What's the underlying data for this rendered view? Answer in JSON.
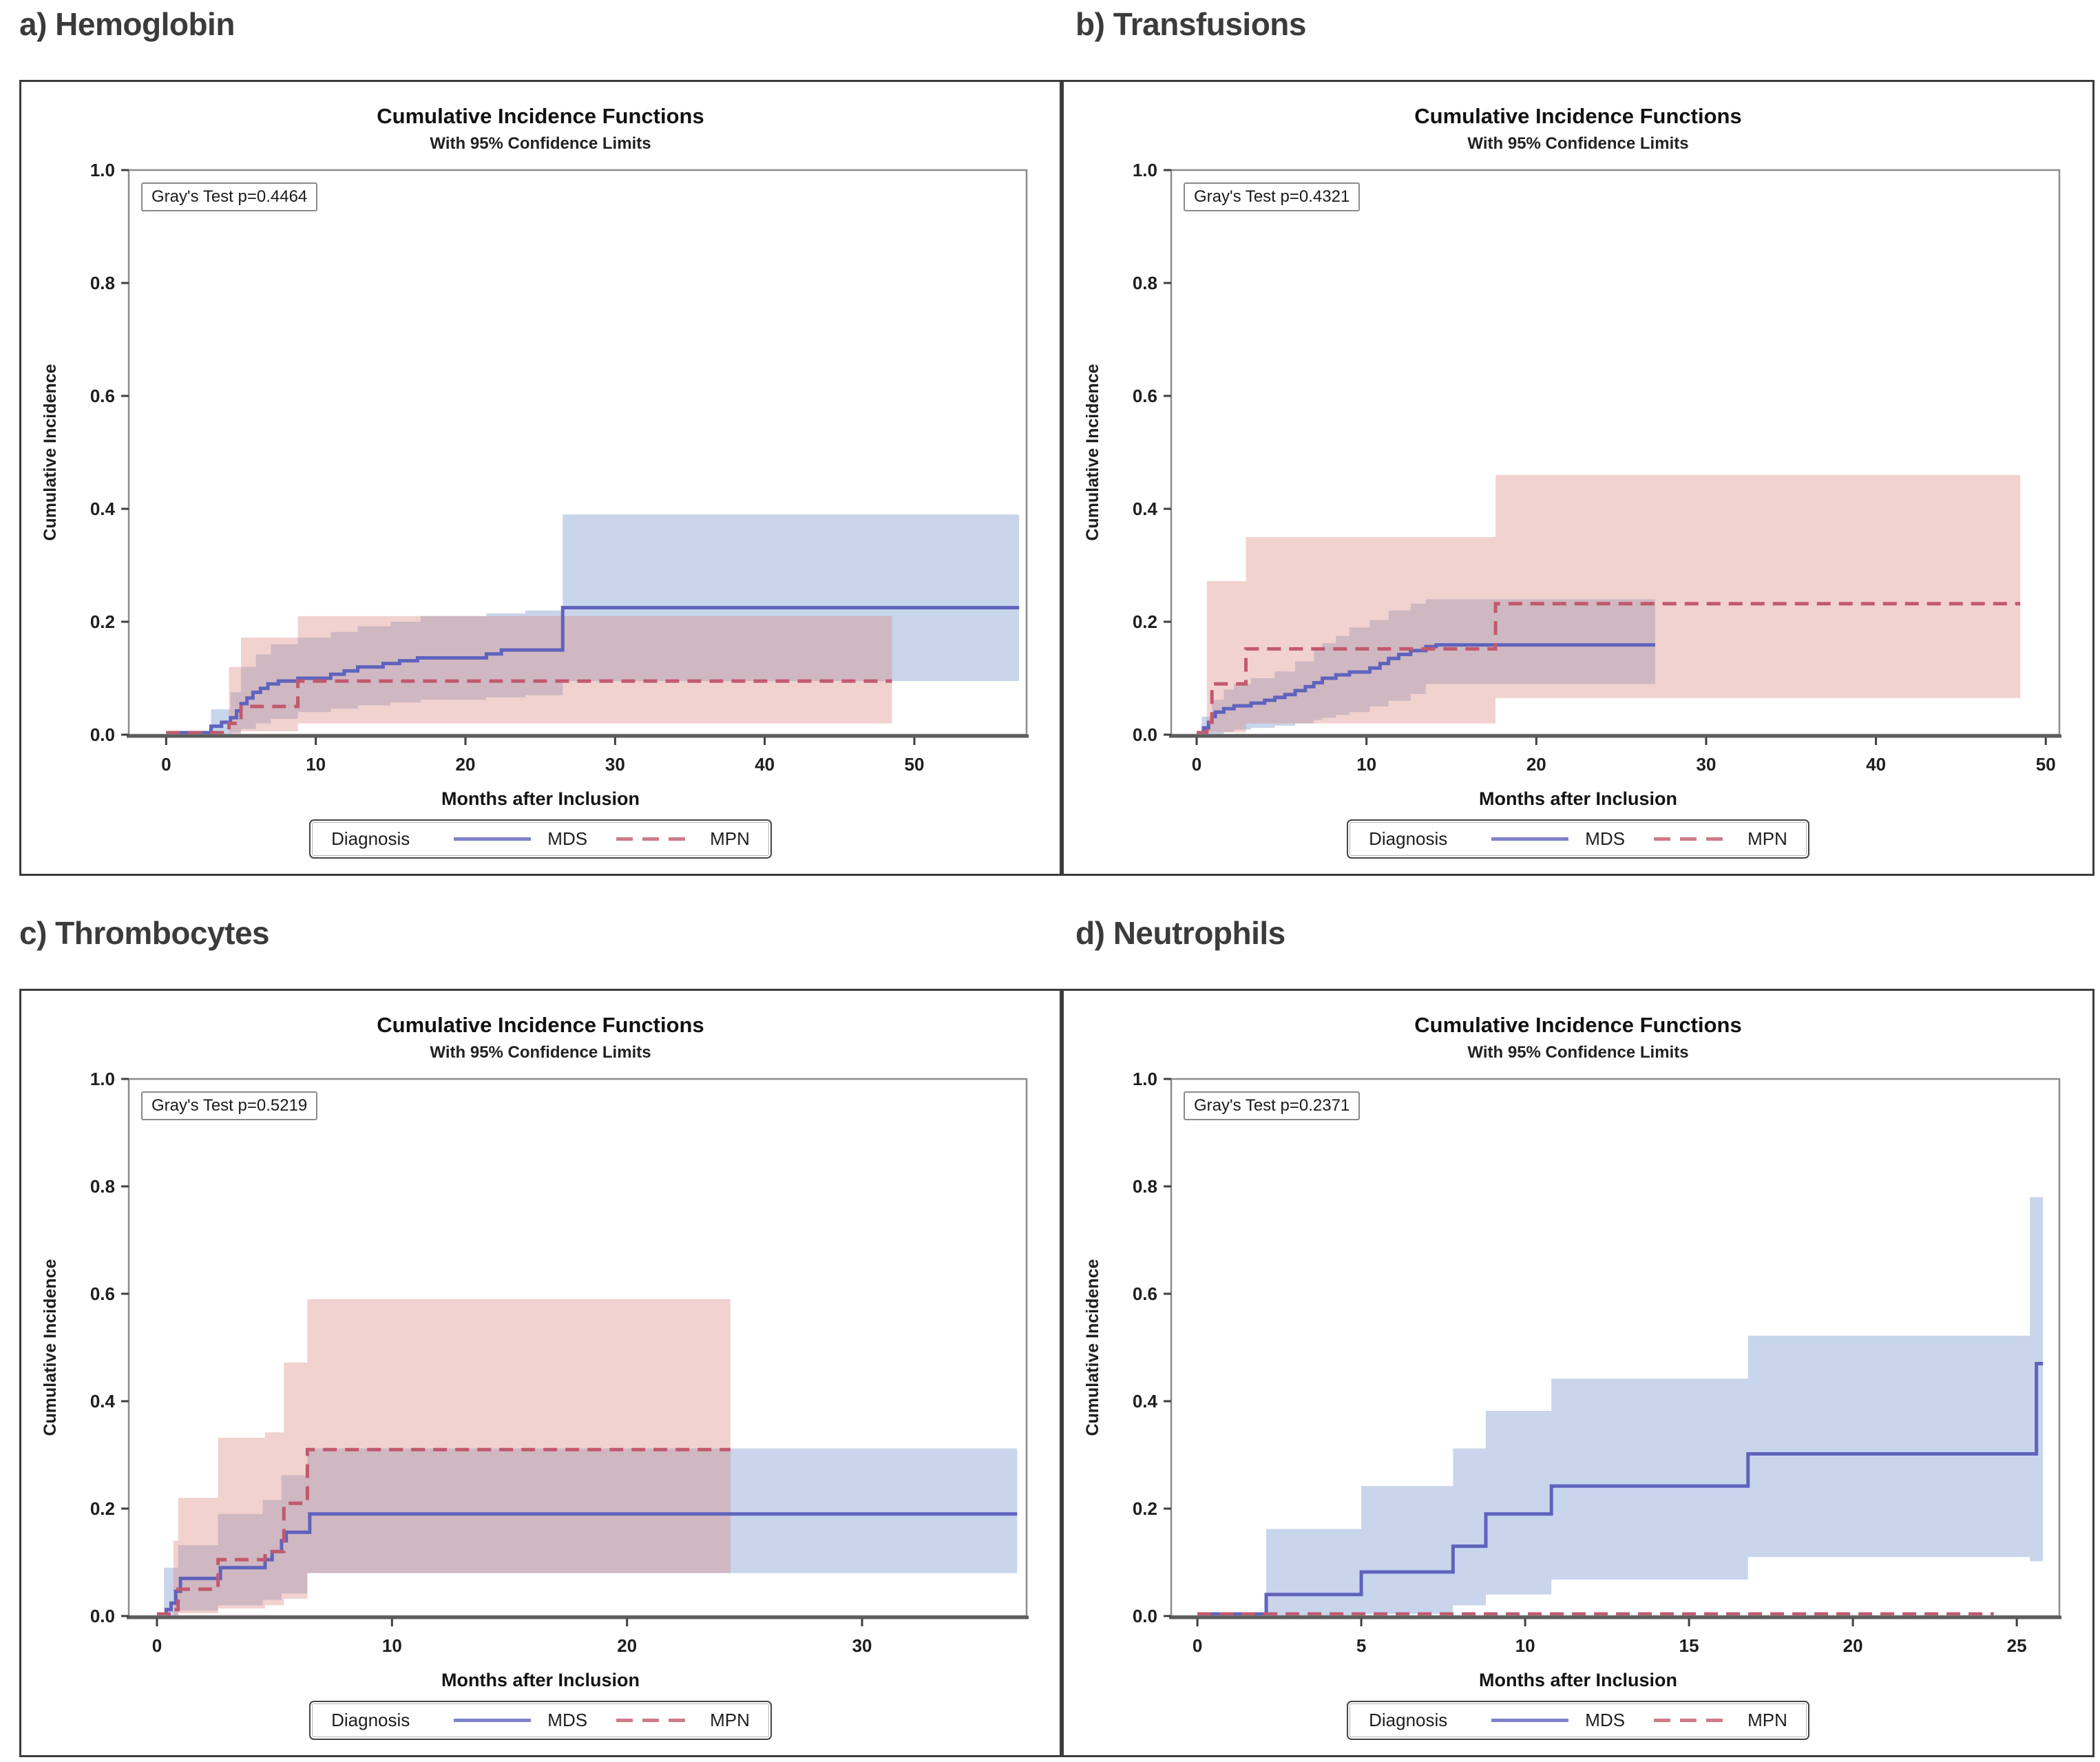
{
  "colors": {
    "mds_line": "#5f63bd",
    "mpn_line": "#c2596e",
    "mds_band": "#7b9cd0",
    "mpn_band": "#d98a80",
    "axis": "#5c5c5c",
    "wall_border": "#8c8c8c",
    "panel_border": "#3c3c3c",
    "text": "#1e1e1e"
  },
  "chart_data": [
    {
      "type": "line",
      "subtype": "step-cumulative-incidence",
      "section": "a) Hemoglobin",
      "title": "Cumulative Incidence Functions",
      "subtitle": "With 95% Confidence Limits",
      "annotation": "Gray's Test p=0.4464",
      "p_value": 0.4464,
      "xlabel": "Months after Inclusion",
      "ylabel": "Cumulative Incidence",
      "xlim": [
        -2.5,
        57.5
      ],
      "ylim": [
        0,
        1
      ],
      "xticks": [
        0,
        10,
        20,
        30,
        40,
        50
      ],
      "yticks": [
        0,
        0.2,
        0.4,
        0.6,
        0.8,
        1
      ],
      "legend": {
        "title": "Diagnosis",
        "position": "bottom",
        "entries": [
          {
            "name": "MDS",
            "line": "solid",
            "color": "#5f63bd"
          },
          {
            "name": "MPN",
            "line": "dashed",
            "color": "#c2596e"
          }
        ]
      },
      "series": [
        {
          "name": "MDS",
          "line": "solid",
          "steps": [
            [
              0,
              0
            ],
            [
              3,
              0.015
            ],
            [
              3.7,
              0.022
            ],
            [
              4.3,
              0.03
            ],
            [
              4.7,
              0.042
            ],
            [
              5,
              0.055
            ],
            [
              5.4,
              0.065
            ],
            [
              5.8,
              0.075
            ],
            [
              6.3,
              0.082
            ],
            [
              6.8,
              0.09
            ],
            [
              7.5,
              0.095
            ],
            [
              8.8,
              0.1
            ],
            [
              11,
              0.107
            ],
            [
              11.9,
              0.113
            ],
            [
              12.8,
              0.12
            ],
            [
              14.5,
              0.126
            ],
            [
              15.6,
              0.131
            ],
            [
              16.8,
              0.136
            ],
            [
              21.4,
              0.143
            ],
            [
              22.4,
              0.15
            ],
            [
              26.5,
              0.225
            ],
            [
              57,
              0.225
            ]
          ]
        },
        {
          "name": "MPN",
          "line": "dashed",
          "steps": [
            [
              0,
              0
            ],
            [
              4.2,
              0.02
            ],
            [
              5,
              0.05
            ],
            [
              8.8,
              0.095
            ],
            [
              48.5,
              0.095
            ]
          ]
        }
      ],
      "confidence_bands": [
        {
          "series": "MDS",
          "x_end": 57,
          "steps": [
            [
              3,
              0,
              0.045
            ],
            [
              4.3,
              0.004,
              0.075
            ],
            [
              5,
              0.01,
              0.12
            ],
            [
              6,
              0.02,
              0.142
            ],
            [
              7,
              0.028,
              0.16
            ],
            [
              8.8,
              0.04,
              0.172
            ],
            [
              11,
              0.046,
              0.182
            ],
            [
              12.8,
              0.052,
              0.192
            ],
            [
              15,
              0.057,
              0.2
            ],
            [
              17,
              0.062,
              0.21
            ],
            [
              21.4,
              0.066,
              0.215
            ],
            [
              24,
              0.07,
              0.22
            ],
            [
              26.5,
              0.095,
              0.39
            ]
          ]
        },
        {
          "series": "MPN",
          "x_end": 48.5,
          "steps": [
            [
              4.2,
              0,
              0.12
            ],
            [
              5,
              0.006,
              0.172
            ],
            [
              8.8,
              0.02,
              0.21
            ]
          ]
        }
      ]
    },
    {
      "type": "line",
      "subtype": "step-cumulative-incidence",
      "section": "b) Transfusions",
      "title": "Cumulative Incidence Functions",
      "subtitle": "With 95% Confidence Limits",
      "annotation": "Gray's Test p=0.4321",
      "p_value": 0.4321,
      "xlabel": "Months after Inclusion",
      "ylabel": "Cumulative Incidence",
      "xlim": [
        -1.5,
        50.8
      ],
      "ylim": [
        0,
        1
      ],
      "xticks": [
        0,
        10,
        20,
        30,
        40,
        50
      ],
      "yticks": [
        0,
        0.2,
        0.4,
        0.6,
        0.8,
        1
      ],
      "legend": {
        "title": "Diagnosis",
        "position": "bottom",
        "entries": [
          {
            "name": "MDS",
            "line": "solid",
            "color": "#5f63bd"
          },
          {
            "name": "MPN",
            "line": "dashed",
            "color": "#c2596e"
          }
        ]
      },
      "series": [
        {
          "name": "MDS",
          "line": "solid",
          "steps": [
            [
              0,
              0
            ],
            [
              0.4,
              0.012
            ],
            [
              0.7,
              0.022
            ],
            [
              0.9,
              0.032
            ],
            [
              1.1,
              0.04
            ],
            [
              1.6,
              0.046
            ],
            [
              2.2,
              0.051
            ],
            [
              3.2,
              0.056
            ],
            [
              4,
              0.061
            ],
            [
              4.6,
              0.066
            ],
            [
              5.2,
              0.071
            ],
            [
              5.8,
              0.078
            ],
            [
              6.4,
              0.085
            ],
            [
              6.9,
              0.092
            ],
            [
              7.4,
              0.1
            ],
            [
              8.2,
              0.106
            ],
            [
              9,
              0.111
            ],
            [
              10.2,
              0.118
            ],
            [
              10.8,
              0.126
            ],
            [
              11.3,
              0.135
            ],
            [
              11.9,
              0.142
            ],
            [
              12.6,
              0.149
            ],
            [
              13.5,
              0.156
            ],
            [
              14.1,
              0.159
            ],
            [
              27,
              0.159
            ]
          ]
        },
        {
          "name": "MPN",
          "line": "dashed",
          "steps": [
            [
              0,
              0
            ],
            [
              0.6,
              0.022
            ],
            [
              0.9,
              0.09
            ],
            [
              2.6,
              0.09
            ],
            [
              2.9,
              0.152
            ],
            [
              17.4,
              0.152
            ],
            [
              17.6,
              0.232
            ],
            [
              48.5,
              0.232
            ]
          ]
        }
      ],
      "confidence_bands": [
        {
          "series": "MDS",
          "x_end": 27,
          "steps": [
            [
              0.3,
              0,
              0.032
            ],
            [
              0.9,
              0,
              0.062
            ],
            [
              1.6,
              0.005,
              0.08
            ],
            [
              2.2,
              0.009,
              0.09
            ],
            [
              3.2,
              0.012,
              0.1
            ],
            [
              4.6,
              0.016,
              0.112
            ],
            [
              5.8,
              0.02,
              0.13
            ],
            [
              6.9,
              0.026,
              0.15
            ],
            [
              7.4,
              0.03,
              0.162
            ],
            [
              8.2,
              0.035,
              0.175
            ],
            [
              9,
              0.04,
              0.19
            ],
            [
              10.2,
              0.05,
              0.203
            ],
            [
              11.3,
              0.06,
              0.22
            ],
            [
              12.6,
              0.072,
              0.232
            ],
            [
              13.5,
              0.09,
              0.24
            ]
          ]
        },
        {
          "series": "MPN",
          "x_end": 48.5,
          "steps": [
            [
              0.6,
              0.004,
              0.272
            ],
            [
              2.9,
              0.02,
              0.35
            ],
            [
              17.6,
              0.065,
              0.46
            ]
          ]
        }
      ]
    },
    {
      "type": "line",
      "subtype": "step-cumulative-incidence",
      "section": "c) Thrombocytes",
      "title": "Cumulative Incidence Functions",
      "subtitle": "With 95% Confidence Limits",
      "annotation": "Gray's Test p=0.5219",
      "p_value": 0.5219,
      "xlabel": "Months after Inclusion",
      "ylabel": "Cumulative Incidence",
      "xlim": [
        -1.2,
        37
      ],
      "ylim": [
        0,
        1
      ],
      "xticks": [
        0,
        10,
        20,
        30
      ],
      "yticks": [
        0,
        0.2,
        0.4,
        0.6,
        0.8,
        1
      ],
      "legend": {
        "title": "Diagnosis",
        "position": "bottom",
        "entries": [
          {
            "name": "MDS",
            "line": "solid",
            "color": "#5f63bd"
          },
          {
            "name": "MPN",
            "line": "dashed",
            "color": "#c2596e"
          }
        ]
      },
      "series": [
        {
          "name": "MDS",
          "line": "solid",
          "steps": [
            [
              0,
              0
            ],
            [
              0.4,
              0.012
            ],
            [
              0.6,
              0.024
            ],
            [
              0.8,
              0.046
            ],
            [
              1,
              0.07
            ],
            [
              2.5,
              0.07
            ],
            [
              2.7,
              0.09
            ],
            [
              4.4,
              0.09
            ],
            [
              4.6,
              0.105
            ],
            [
              4.9,
              0.12
            ],
            [
              5.3,
              0.14
            ],
            [
              5.5,
              0.156
            ],
            [
              6.3,
              0.156
            ],
            [
              6.5,
              0.19
            ],
            [
              36.6,
              0.19
            ]
          ]
        },
        {
          "name": "MPN",
          "line": "dashed",
          "steps": [
            [
              0,
              0
            ],
            [
              0.7,
              0.012
            ],
            [
              0.9,
              0.05
            ],
            [
              2.4,
              0.05
            ],
            [
              2.6,
              0.105
            ],
            [
              4.4,
              0.105
            ],
            [
              4.6,
              0.12
            ],
            [
              5.2,
              0.12
            ],
            [
              5.4,
              0.21
            ],
            [
              6.2,
              0.21
            ],
            [
              6.4,
              0.31
            ],
            [
              24.4,
              0.31
            ]
          ]
        }
      ],
      "confidence_bands": [
        {
          "series": "MDS",
          "x_end": 36.6,
          "steps": [
            [
              0.3,
              0,
              0.09
            ],
            [
              0.9,
              0.01,
              0.132
            ],
            [
              2.6,
              0.02,
              0.19
            ],
            [
              4.5,
              0.03,
              0.216
            ],
            [
              5.3,
              0.042,
              0.262
            ],
            [
              6.4,
              0.08,
              0.312
            ]
          ]
        },
        {
          "series": "MPN",
          "x_end": 24.4,
          "steps": [
            [
              0.7,
              0,
              0.14
            ],
            [
              0.9,
              0.005,
              0.22
            ],
            [
              2.6,
              0.014,
              0.332
            ],
            [
              4.6,
              0.02,
              0.342
            ],
            [
              5.4,
              0.032,
              0.472
            ],
            [
              6.4,
              0.08,
              0.59
            ]
          ]
        }
      ]
    },
    {
      "type": "line",
      "subtype": "step-cumulative-incidence",
      "section": "d) Neutrophils",
      "title": "Cumulative Incidence Functions",
      "subtitle": "With 95% Confidence Limits",
      "annotation": "Gray's Test p=0.2371",
      "p_value": 0.2371,
      "xlabel": "Months after Inclusion",
      "ylabel": "Cumulative Incidence",
      "xlim": [
        -0.8,
        26.3
      ],
      "ylim": [
        0,
        1
      ],
      "xticks": [
        0,
        5,
        10,
        15,
        20,
        25
      ],
      "yticks": [
        0,
        0.2,
        0.4,
        0.6,
        0.8,
        1
      ],
      "legend": {
        "title": "Diagnosis",
        "position": "bottom",
        "entries": [
          {
            "name": "MDS",
            "line": "solid",
            "color": "#5f63bd"
          },
          {
            "name": "MPN",
            "line": "dashed",
            "color": "#c2596e"
          }
        ]
      },
      "series": [
        {
          "name": "MDS",
          "line": "solid",
          "steps": [
            [
              0,
              0
            ],
            [
              2.1,
              0.04
            ],
            [
              5,
              0.082
            ],
            [
              7.8,
              0.13
            ],
            [
              8.8,
              0.19
            ],
            [
              10.8,
              0.242
            ],
            [
              16.8,
              0.302
            ],
            [
              25.5,
              0.302
            ],
            [
              25.6,
              0.47
            ],
            [
              25.8,
              0.47
            ]
          ]
        },
        {
          "name": "MPN",
          "line": "dashed",
          "steps": [
            [
              0,
              0
            ],
            [
              24.3,
              0
            ]
          ]
        }
      ],
      "confidence_bands": [
        {
          "series": "MDS",
          "x_end": 25.8,
          "steps": [
            [
              2.1,
              0,
              0.162
            ],
            [
              5,
              0.004,
              0.242
            ],
            [
              7.8,
              0.02,
              0.312
            ],
            [
              8.8,
              0.04,
              0.382
            ],
            [
              10.8,
              0.068,
              0.442
            ],
            [
              16.8,
              0.11,
              0.522
            ],
            [
              25.4,
              0.102,
              0.78
            ]
          ]
        },
        {
          "series": "MPN",
          "x_end": null,
          "steps": []
        }
      ]
    }
  ]
}
